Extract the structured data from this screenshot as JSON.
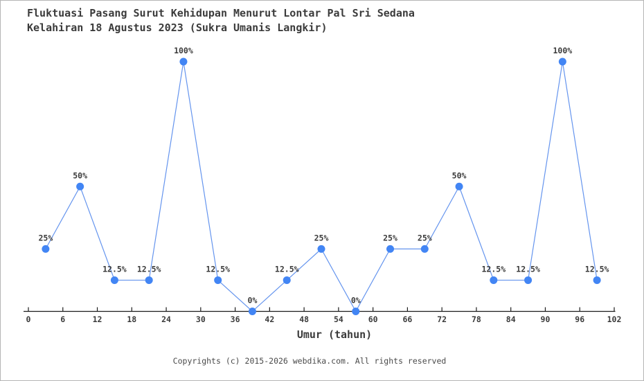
{
  "chart_data": {
    "type": "line",
    "title": "Fluktuasi Pasang Surut Kehidupan Menurut Lontar Pal Sri Sedana",
    "subtitle": "Kelahiran 18 Agustus 2023 (Sukra Umanis Langkir)",
    "xlabel": "Umur (tahun)",
    "ylabel": "",
    "x": [
      3,
      9,
      15,
      21,
      27,
      33,
      39,
      45,
      51,
      57,
      63,
      69,
      75,
      81,
      87,
      93,
      99
    ],
    "values": [
      25,
      50,
      12.5,
      12.5,
      100,
      12.5,
      0,
      12.5,
      25,
      0,
      25,
      25,
      50,
      12.5,
      12.5,
      100,
      12.5
    ],
    "point_labels": [
      "25%",
      "50%",
      "12.5%",
      "12.5%",
      "100%",
      "12.5%",
      "0%",
      "12.5%",
      "25%",
      "0%",
      "25%",
      "25%",
      "50%",
      "12.5%",
      "12.5%",
      "100%",
      "12.5%"
    ],
    "x_ticks": [
      0,
      6,
      12,
      18,
      24,
      30,
      36,
      42,
      48,
      54,
      60,
      66,
      72,
      78,
      84,
      90,
      96,
      102
    ],
    "xlim": [
      0,
      102
    ],
    "ylim": [
      0,
      100
    ],
    "grid": false,
    "legend": false,
    "line_color": "#6494ee",
    "point_color": "#4285f4",
    "axis_color": "#1a1a1a",
    "label_color": "#3b3b3b"
  },
  "footer": {
    "copyright": "Copyrights (c) 2015-2026 webdika.com. All rights reserved"
  }
}
